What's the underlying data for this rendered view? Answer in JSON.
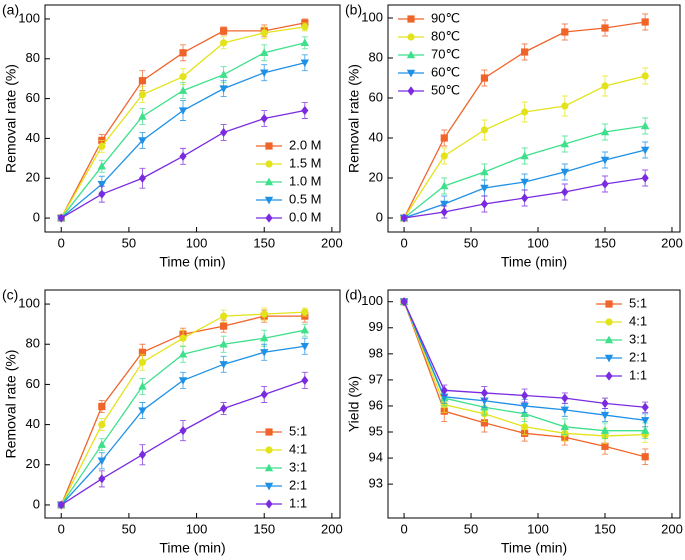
{
  "chart_data": [
    {
      "type": "line",
      "label": "(a)",
      "xlabel": "Time (min)",
      "ylabel": "Removal rate (%)",
      "x": [
        0,
        30,
        60,
        90,
        120,
        150,
        180
      ],
      "xlim": [
        -12,
        206
      ],
      "xticks": [
        0,
        50,
        100,
        150,
        200
      ],
      "ylim": [
        -7,
        107
      ],
      "yticks": [
        0,
        20,
        40,
        60,
        80,
        100
      ],
      "legend": "lower right",
      "series": [
        {
          "name": "2.0 M",
          "color": "#f0642a",
          "marker": "square",
          "values": [
            0,
            39,
            69,
            83,
            94,
            94,
            98
          ],
          "errors": [
            1,
            3,
            5,
            4,
            2,
            3,
            2
          ]
        },
        {
          "name": "1.5 M",
          "color": "#e3e31c",
          "marker": "circle",
          "values": [
            0,
            36,
            62,
            71,
            88,
            93,
            96
          ],
          "errors": [
            1,
            3,
            4,
            4,
            3,
            3,
            2
          ]
        },
        {
          "name": "1.0 M",
          "color": "#3ee08c",
          "marker": "triangle-up",
          "values": [
            0,
            26,
            51,
            64,
            72,
            83,
            88
          ],
          "errors": [
            1,
            3,
            4,
            4,
            4,
            4,
            3
          ]
        },
        {
          "name": "0.5 M",
          "color": "#1e90e6",
          "marker": "triangle-down",
          "values": [
            0,
            17,
            39,
            54,
            65,
            73,
            78
          ],
          "errors": [
            1,
            4,
            4,
            5,
            4,
            4,
            4
          ]
        },
        {
          "name": "0.0 M",
          "color": "#7a2be0",
          "marker": "diamond",
          "values": [
            0,
            12,
            20,
            31,
            43,
            50,
            54
          ],
          "errors": [
            1,
            4,
            5,
            4,
            4,
            4,
            4
          ]
        }
      ]
    },
    {
      "type": "line",
      "label": "(b)",
      "xlabel": "Time (min)",
      "ylabel": "Removal rate (%)",
      "x": [
        0,
        30,
        60,
        90,
        120,
        150,
        180
      ],
      "xlim": [
        -12,
        206
      ],
      "xticks": [
        0,
        50,
        100,
        150,
        200
      ],
      "ylim": [
        -7,
        106.5
      ],
      "yticks": [
        0,
        20,
        40,
        60,
        80,
        100
      ],
      "legend": "upper left",
      "series": [
        {
          "name": "90℃",
          "color": "#f0642a",
          "marker": "square",
          "values": [
            0,
            40,
            70,
            83,
            93,
            95,
            98
          ],
          "errors": [
            1,
            4,
            4,
            4,
            4,
            4,
            4
          ]
        },
        {
          "name": "80℃",
          "color": "#e3e31c",
          "marker": "circle",
          "values": [
            0,
            31,
            44,
            53,
            56,
            66,
            71
          ],
          "errors": [
            1,
            4,
            5,
            5,
            5,
            5,
            4
          ]
        },
        {
          "name": "70℃",
          "color": "#3ee08c",
          "marker": "triangle-up",
          "values": [
            0,
            16,
            23,
            31,
            37,
            43,
            46
          ],
          "errors": [
            1,
            4,
            4,
            4,
            4,
            4,
            4
          ]
        },
        {
          "name": "60℃",
          "color": "#1e90e6",
          "marker": "triangle-down",
          "values": [
            0,
            7,
            15,
            18,
            23,
            29,
            34
          ],
          "errors": [
            1,
            4,
            4,
            4,
            4,
            4,
            4
          ]
        },
        {
          "name": "50℃",
          "color": "#7a2be0",
          "marker": "diamond",
          "values": [
            0,
            3,
            7,
            10,
            13,
            17,
            20
          ],
          "errors": [
            1,
            3,
            4,
            4,
            4,
            4,
            4
          ]
        }
      ]
    },
    {
      "type": "line",
      "label": "(c)",
      "xlabel": "Time (min)",
      "ylabel": "Removal rate (%)",
      "x": [
        0,
        30,
        60,
        90,
        120,
        150,
        180
      ],
      "xlim": [
        -12,
        206
      ],
      "xticks": [
        0,
        50,
        100,
        150,
        200
      ],
      "ylim": [
        -6.5,
        107
      ],
      "yticks": [
        0,
        20,
        40,
        60,
        80,
        100
      ],
      "legend": "lower right",
      "series": [
        {
          "name": "5:1",
          "color": "#f0642a",
          "marker": "square",
          "values": [
            0,
            49,
            76,
            85,
            89,
            94,
            94
          ],
          "errors": [
            1,
            3,
            4,
            3,
            3,
            3,
            3
          ]
        },
        {
          "name": "4:1",
          "color": "#e3e31c",
          "marker": "circle",
          "values": [
            0,
            40,
            71,
            83,
            94,
            95,
            96
          ],
          "errors": [
            1,
            3,
            4,
            4,
            3,
            3,
            2
          ]
        },
        {
          "name": "3:1",
          "color": "#3ee08c",
          "marker": "triangle-up",
          "values": [
            0,
            30,
            59,
            75,
            80,
            83,
            87
          ],
          "errors": [
            1,
            3,
            4,
            4,
            4,
            4,
            3
          ]
        },
        {
          "name": "2:1",
          "color": "#1e90e6",
          "marker": "triangle-down",
          "values": [
            0,
            22,
            47,
            62,
            70,
            76,
            79
          ],
          "errors": [
            1,
            4,
            4,
            4,
            4,
            4,
            4
          ]
        },
        {
          "name": "1:1",
          "color": "#7a2be0",
          "marker": "diamond",
          "values": [
            0,
            13,
            25,
            37,
            48,
            55,
            62
          ],
          "errors": [
            1,
            4,
            5,
            5,
            3,
            4,
            4
          ]
        }
      ]
    },
    {
      "type": "line",
      "label": "(d)",
      "xlabel": "Time (min)",
      "ylabel": "Yield (%)",
      "x": [
        0,
        30,
        60,
        90,
        120,
        150,
        180
      ],
      "xlim": [
        -12,
        206
      ],
      "xticks": [
        0,
        50,
        100,
        150,
        200
      ],
      "ylim": [
        91.7,
        100.45
      ],
      "yticks": [
        93,
        94,
        95,
        96,
        97,
        98,
        99,
        100
      ],
      "legend": "upper right",
      "series": [
        {
          "name": "5:1",
          "color": "#f0642a",
          "marker": "square",
          "values": [
            100,
            95.8,
            95.35,
            94.95,
            94.8,
            94.45,
            94.05
          ],
          "errors": [
            0.05,
            0.4,
            0.35,
            0.3,
            0.3,
            0.3,
            0.3
          ]
        },
        {
          "name": "4:1",
          "color": "#e3e31c",
          "marker": "circle",
          "values": [
            100,
            96.05,
            95.7,
            95.2,
            94.95,
            94.85,
            94.9
          ],
          "errors": [
            0.05,
            0.3,
            0.3,
            0.3,
            0.3,
            0.3,
            0.3
          ]
        },
        {
          "name": "3:1",
          "color": "#3ee08c",
          "marker": "triangle-up",
          "values": [
            100,
            96.3,
            95.95,
            95.7,
            95.2,
            95.05,
            95.05
          ],
          "errors": [
            0.05,
            0.3,
            0.3,
            0.3,
            0.3,
            0.3,
            0.3
          ]
        },
        {
          "name": "2:1",
          "color": "#1e90e6",
          "marker": "triangle-down",
          "values": [
            100,
            96.35,
            96.2,
            96.0,
            95.85,
            95.65,
            95.45
          ],
          "errors": [
            0.05,
            0.25,
            0.25,
            0.25,
            0.25,
            0.25,
            0.25
          ]
        },
        {
          "name": "1:1",
          "color": "#7a2be0",
          "marker": "diamond",
          "values": [
            100,
            96.6,
            96.5,
            96.4,
            96.3,
            96.1,
            95.95
          ],
          "errors": [
            0.05,
            0.2,
            0.25,
            0.25,
            0.2,
            0.2,
            0.2
          ]
        }
      ]
    }
  ]
}
